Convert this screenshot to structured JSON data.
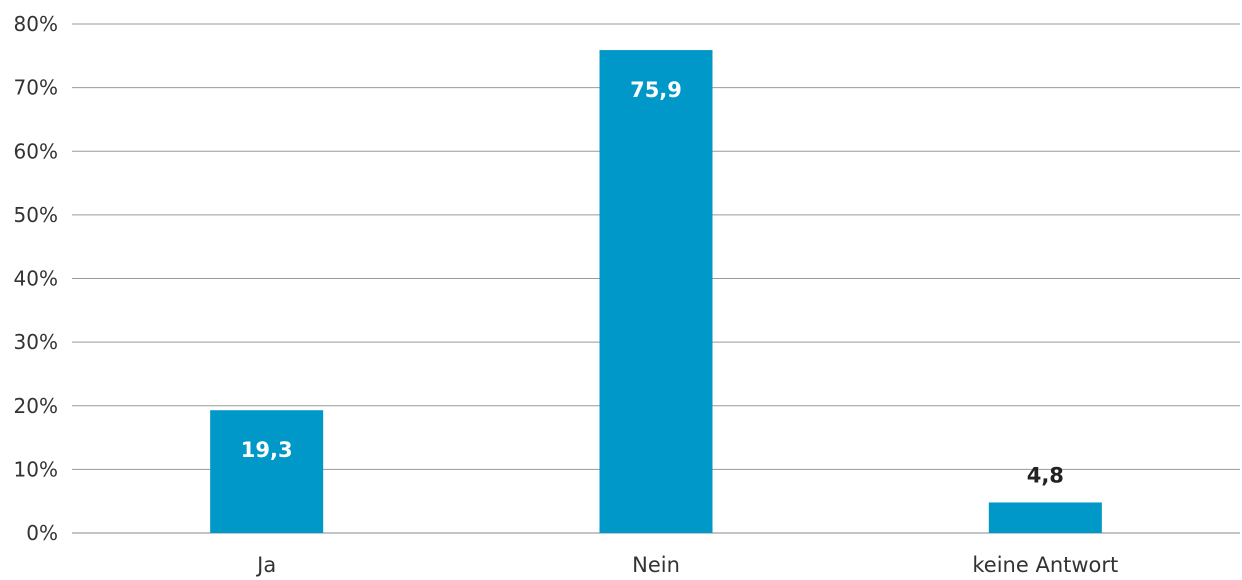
{
  "chart_data": {
    "type": "bar",
    "categories": [
      "Ja",
      "Nein",
      "keine Antwort"
    ],
    "values": [
      19.3,
      75.9,
      4.8
    ],
    "data_labels": [
      "19,3",
      "75,9",
      "4,8"
    ],
    "yticks": [
      "0%",
      "10%",
      "20%",
      "30%",
      "40%",
      "50%",
      "60%",
      "70%",
      "80%"
    ],
    "ylim": [
      0,
      80
    ],
    "grid": true,
    "legend": "none",
    "colors": {
      "bar": "#0098c8",
      "label_inside": "#ffffff",
      "label_outside": "#222222"
    }
  }
}
